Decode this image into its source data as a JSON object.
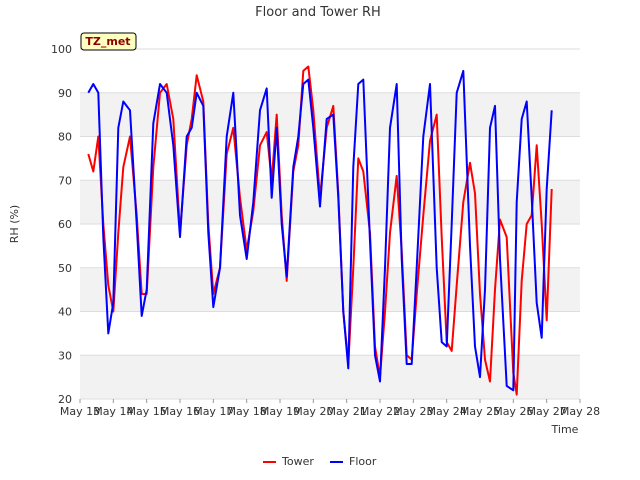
{
  "chart_data": {
    "type": "line",
    "title": "Floor and Tower RH",
    "xlabel": "Time",
    "ylabel": "RH (%)",
    "ylim": [
      20,
      100
    ],
    "yticks": [
      "20",
      "30",
      "40",
      "50",
      "60",
      "70",
      "80",
      "90",
      "100"
    ],
    "xticks": [
      "May 13",
      "May 14",
      "May 15",
      "May 16",
      "May 17",
      "May 18",
      "May 19",
      "May 20",
      "May 21",
      "May 22",
      "May 23",
      "May 24",
      "May 25",
      "May 26",
      "May 27",
      "May 28"
    ],
    "xlim_days": [
      13,
      28
    ],
    "grid": "horizontal bands",
    "legend_position": "bottom",
    "annotation": "TZ_met",
    "series": [
      {
        "name": "Tower",
        "color": "#ff0000",
        "x": [
          13.25,
          13.4,
          13.55,
          13.7,
          13.85,
          14.0,
          14.15,
          14.3,
          14.5,
          14.7,
          14.85,
          15.0,
          15.2,
          15.4,
          15.6,
          15.8,
          16.0,
          16.2,
          16.35,
          16.5,
          16.7,
          16.85,
          17.0,
          17.2,
          17.4,
          17.6,
          17.8,
          18.0,
          18.2,
          18.4,
          18.6,
          18.75,
          18.9,
          19.05,
          19.2,
          19.4,
          19.55,
          19.7,
          19.85,
          20.0,
          20.2,
          20.4,
          20.6,
          20.75,
          20.9,
          21.05,
          21.2,
          21.35,
          21.5,
          21.7,
          21.85,
          22.0,
          22.15,
          22.3,
          22.5,
          22.65,
          22.8,
          22.95,
          23.1,
          23.3,
          23.5,
          23.7,
          23.85,
          24.0,
          24.15,
          24.3,
          24.5,
          24.7,
          24.85,
          25.0,
          25.15,
          25.3,
          25.45,
          25.6,
          25.8,
          26.0,
          26.1,
          26.25,
          26.4,
          26.55,
          26.7,
          26.85,
          27.0,
          27.15
        ],
        "y": [
          76,
          72,
          80,
          60,
          46,
          40,
          58,
          73,
          80,
          62,
          44,
          44,
          73,
          90,
          92,
          84,
          58,
          78,
          84,
          94,
          88,
          60,
          44,
          50,
          76,
          82,
          66,
          54,
          63,
          78,
          81,
          70,
          85,
          62,
          47,
          72,
          78,
          95,
          96,
          86,
          66,
          82,
          87,
          67,
          40,
          28,
          50,
          75,
          72,
          58,
          32,
          25,
          40,
          58,
          71,
          54,
          30,
          29,
          44,
          62,
          79,
          85,
          57,
          33,
          31,
          46,
          65,
          74,
          67,
          44,
          29,
          24,
          45,
          61,
          57,
          26,
          21,
          47,
          60,
          62,
          78,
          60,
          38,
          68
        ]
      },
      {
        "name": "Floor",
        "color": "#0000ff",
        "x": [
          13.25,
          13.4,
          13.55,
          13.7,
          13.85,
          14.0,
          14.15,
          14.3,
          14.5,
          14.7,
          14.85,
          15.0,
          15.2,
          15.4,
          15.6,
          15.8,
          16.0,
          16.2,
          16.35,
          16.5,
          16.7,
          16.85,
          17.0,
          17.2,
          17.4,
          17.6,
          17.8,
          18.0,
          18.2,
          18.4,
          18.6,
          18.75,
          18.9,
          19.05,
          19.2,
          19.4,
          19.55,
          19.7,
          19.85,
          20.0,
          20.2,
          20.4,
          20.6,
          20.75,
          20.9,
          21.05,
          21.2,
          21.35,
          21.5,
          21.7,
          21.85,
          22.0,
          22.15,
          22.3,
          22.5,
          22.65,
          22.8,
          22.95,
          23.1,
          23.3,
          23.5,
          23.7,
          23.85,
          24.0,
          24.15,
          24.3,
          24.5,
          24.7,
          24.85,
          25.0,
          25.15,
          25.3,
          25.45,
          25.6,
          25.8,
          26.0,
          26.1,
          26.25,
          26.4,
          26.55,
          26.7,
          26.85,
          27.0,
          27.15
        ],
        "y": [
          90,
          92,
          90,
          57,
          35,
          42,
          82,
          88,
          86,
          60,
          39,
          45,
          83,
          92,
          90,
          78,
          57,
          80,
          82,
          90,
          87,
          58,
          41,
          50,
          80,
          90,
          62,
          52,
          65,
          86,
          91,
          66,
          82,
          60,
          48,
          73,
          80,
          92,
          93,
          82,
          64,
          84,
          85,
          66,
          40,
          27,
          73,
          92,
          93,
          56,
          30,
          24,
          50,
          82,
          92,
          52,
          28,
          28,
          50,
          80,
          92,
          50,
          33,
          32,
          60,
          90,
          95,
          55,
          32,
          25,
          45,
          82,
          87,
          52,
          23,
          22,
          65,
          84,
          88,
          66,
          42,
          34,
          68,
          86
        ]
      }
    ]
  }
}
